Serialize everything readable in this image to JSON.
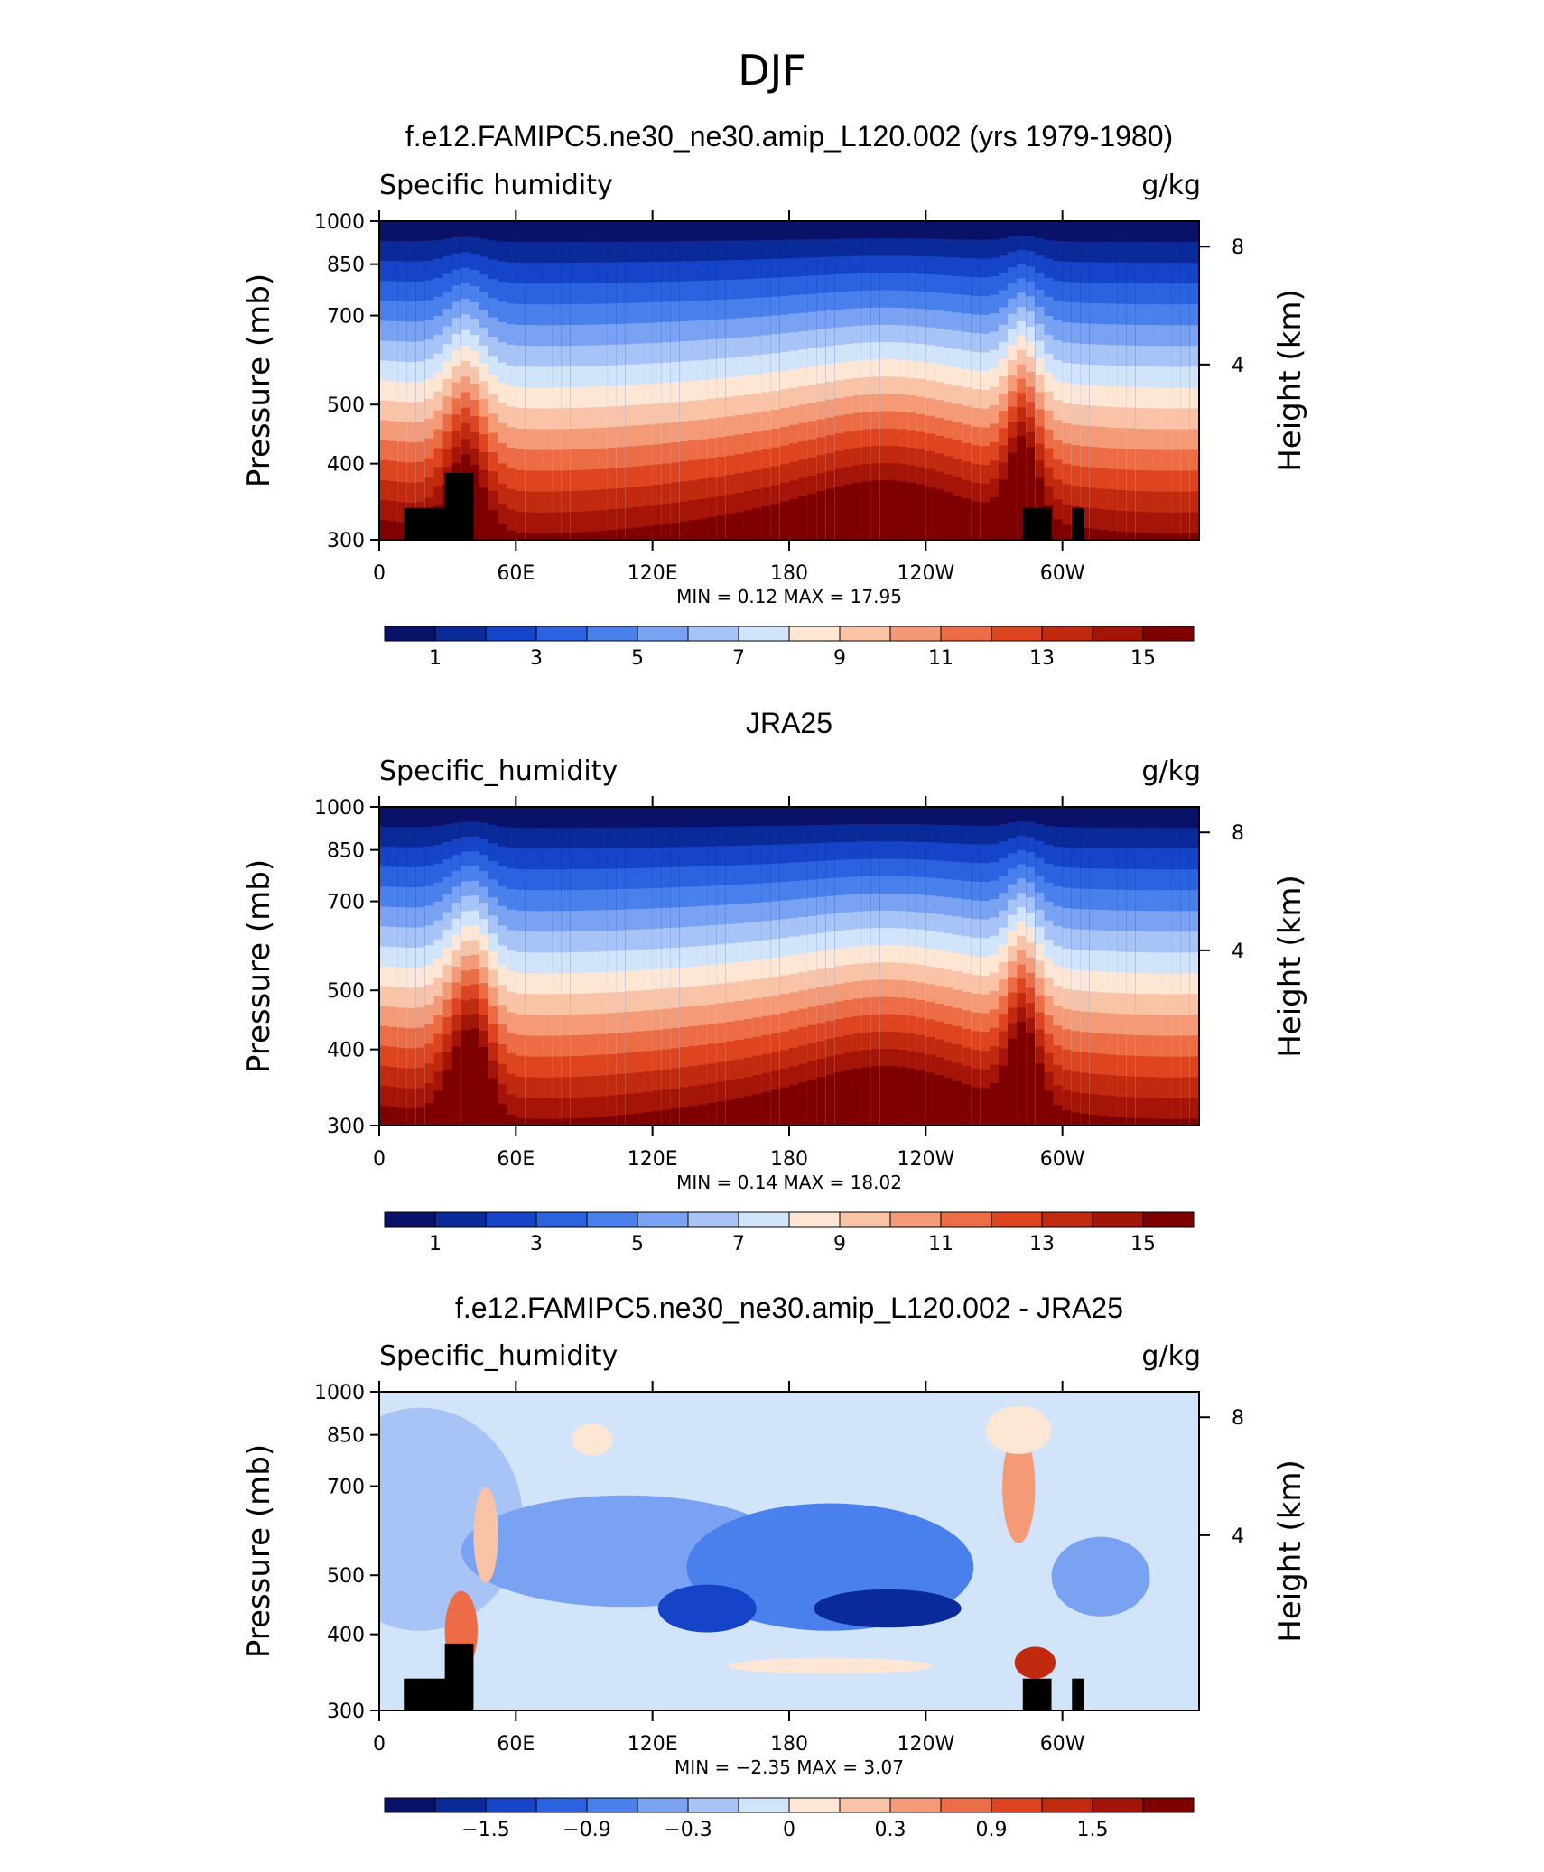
{
  "figure_title": "DJF",
  "chart_data": [
    {
      "type": "heatmap",
      "title": "f.e12.FAMIPC5.ne30_ne30.amip_L120.002 (yrs 1979-1980)",
      "left_label": "Specific humidity",
      "right_label": "g/kg",
      "ylabel": "Pressure (mb)",
      "y2label": "Height (km)",
      "ylim": [
        1000,
        300
      ],
      "y_scale": "log",
      "x_range_degrees": [
        0,
        360
      ],
      "x_ticks": [
        "0",
        "60E",
        "120E",
        "180",
        "120W",
        "60W"
      ],
      "y_ticks": [
        "300",
        "400",
        "500",
        "700",
        "850",
        "1000"
      ],
      "y2_ticks": [
        "8",
        "4"
      ],
      "stats_text": "MIN =    0.12   MAX =   17.95",
      "min": 0.12,
      "max": 17.95,
      "colorbar_labels": [
        "1",
        "3",
        "5",
        "7",
        "9",
        "11",
        "13",
        "15"
      ],
      "colorbar_levels": [
        0,
        1,
        2,
        3,
        4,
        5,
        6,
        7,
        8,
        9,
        10,
        11,
        12,
        13,
        14,
        15,
        16
      ]
    },
    {
      "type": "heatmap",
      "title": "JRA25",
      "left_label": "Specific_humidity",
      "right_label": "g/kg",
      "ylabel": "Pressure (mb)",
      "y2label": "Height (km)",
      "ylim": [
        1000,
        300
      ],
      "y_scale": "log",
      "x_range_degrees": [
        0,
        360
      ],
      "x_ticks": [
        "0",
        "60E",
        "120E",
        "180",
        "120W",
        "60W"
      ],
      "y_ticks": [
        "300",
        "400",
        "500",
        "700",
        "850",
        "1000"
      ],
      "y2_ticks": [
        "8",
        "4"
      ],
      "stats_text": "MIN =    0.14   MAX =   18.02",
      "min": 0.14,
      "max": 18.02,
      "colorbar_labels": [
        "1",
        "3",
        "5",
        "7",
        "9",
        "11",
        "13",
        "15"
      ],
      "colorbar_levels": [
        0,
        1,
        2,
        3,
        4,
        5,
        6,
        7,
        8,
        9,
        10,
        11,
        12,
        13,
        14,
        15,
        16
      ]
    },
    {
      "type": "heatmap",
      "title": "f.e12.FAMIPC5.ne30_ne30.amip_L120.002 - JRA25",
      "left_label": "Specific_humidity",
      "right_label": "g/kg",
      "ylabel": "Pressure (mb)",
      "y2label": "Height (km)",
      "ylim": [
        1000,
        300
      ],
      "y_scale": "log",
      "x_range_degrees": [
        0,
        360
      ],
      "x_ticks": [
        "0",
        "60E",
        "120E",
        "180",
        "120W",
        "60W"
      ],
      "y_ticks": [
        "300",
        "400",
        "500",
        "700",
        "850",
        "1000"
      ],
      "y2_ticks": [
        "8",
        "4"
      ],
      "stats_text": "MIN =   −2.35   MAX =     3.07",
      "min": -2.35,
      "max": 3.07,
      "colorbar_labels": [
        "−1.5",
        "−0.9",
        "−0.3",
        "0",
        "0.3",
        "0.9",
        "1.5"
      ],
      "colorbar_levels": [
        -2.1,
        -1.8,
        -1.5,
        -1.2,
        -0.9,
        -0.6,
        -0.3,
        -0.1,
        0,
        0.1,
        0.3,
        0.6,
        0.9,
        1.2,
        1.5,
        1.8,
        2.1
      ]
    }
  ],
  "colors": {
    "palette": [
      "#0a1168",
      "#0a2a9a",
      "#1544c8",
      "#2a62e0",
      "#4a80ec",
      "#7aa2f2",
      "#a8c4f6",
      "#d2e4fa",
      "#fde6d4",
      "#f8c3a6",
      "#f49a76",
      "#ec6c46",
      "#de4420",
      "#c22a10",
      "#a41408",
      "#7e0000"
    ]
  }
}
